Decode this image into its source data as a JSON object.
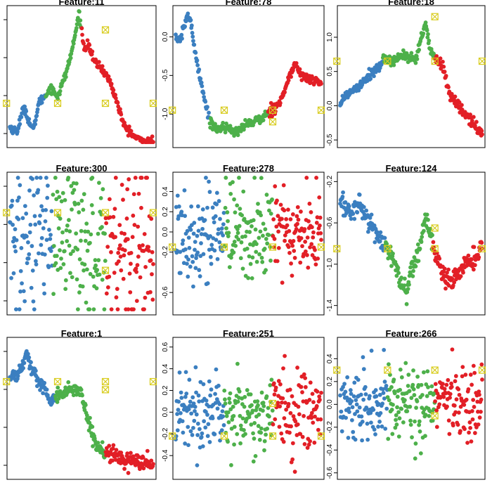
{
  "colors": {
    "blue": "#3b7fc0",
    "green": "#4db04a",
    "red": "#e21f26",
    "yellow": "#d8cc1e"
  },
  "chart_data": [
    {
      "type": "scatter",
      "title": "Feature:11",
      "show_ticks": false,
      "yticks": [],
      "ylim": [
        0,
        1
      ],
      "xlim": [
        0,
        300
      ],
      "noise": 0.015,
      "knots": [
        [
          0,
          0.12
        ],
        [
          15,
          0.09
        ],
        [
          30,
          0.28
        ],
        [
          40,
          0.16
        ],
        [
          50,
          0.1
        ],
        [
          60,
          0.3
        ],
        [
          75,
          0.36
        ],
        [
          85,
          0.42
        ],
        [
          100,
          0.35
        ],
        [
          115,
          0.5
        ],
        [
          125,
          0.62
        ],
        [
          135,
          0.78
        ],
        [
          145,
          0.98
        ],
        [
          155,
          0.72
        ],
        [
          165,
          0.74
        ],
        [
          175,
          0.62
        ],
        [
          195,
          0.55
        ],
        [
          210,
          0.46
        ],
        [
          225,
          0.3
        ],
        [
          240,
          0.12
        ],
        [
          250,
          0.1
        ],
        [
          260,
          0.05
        ],
        [
          270,
          0.03
        ],
        [
          280,
          0.02
        ],
        [
          290,
          0.01
        ],
        [
          300,
          0.02
        ]
      ],
      "segments": [
        [
          0,
          75
        ],
        [
          75,
          150
        ],
        [
          150,
          300
        ]
      ],
      "markers": [
        [
          -7,
          0.3
        ],
        [
          100,
          0.3
        ],
        [
          200,
          0.3
        ],
        [
          200,
          0.85
        ],
        [
          300,
          0.3
        ]
      ]
    },
    {
      "type": "scatter",
      "title": "Feature:78",
      "show_ticks": true,
      "yticks": [
        "0.0",
        "-0.5",
        "-1.0"
      ],
      "ytick_values": [
        0.0,
        -0.5,
        -1.0
      ],
      "ylim": [
        -1.38,
        0.35
      ],
      "xlim": [
        0,
        300
      ],
      "noise": 0.03,
      "knots": [
        [
          0,
          0.0
        ],
        [
          10,
          -0.05
        ],
        [
          18,
          0.15
        ],
        [
          25,
          0.3
        ],
        [
          32,
          0.15
        ],
        [
          40,
          -0.2
        ],
        [
          48,
          -0.45
        ],
        [
          56,
          -0.7
        ],
        [
          64,
          -0.95
        ],
        [
          72,
          -1.1
        ],
        [
          85,
          -1.2
        ],
        [
          100,
          -1.15
        ],
        [
          120,
          -1.25
        ],
        [
          140,
          -1.15
        ],
        [
          160,
          -1.1
        ],
        [
          180,
          -1.05
        ],
        [
          195,
          -0.95
        ],
        [
          215,
          -0.85
        ],
        [
          230,
          -0.6
        ],
        [
          245,
          -0.35
        ],
        [
          260,
          -0.5
        ],
        [
          275,
          -0.55
        ],
        [
          300,
          -0.6
        ]
      ],
      "segments": [
        [
          0,
          70
        ],
        [
          70,
          190
        ],
        [
          190,
          300
        ]
      ],
      "markers": [
        [
          -7,
          -0.95
        ],
        [
          100,
          -0.95
        ],
        [
          200,
          -0.95
        ],
        [
          300,
          -0.95
        ],
        [
          200,
          -1.1
        ]
      ]
    },
    {
      "type": "scatter",
      "title": "Feature:18",
      "show_ticks": true,
      "yticks": [
        "1.0",
        "0.5",
        "0.0",
        "-0.5"
      ],
      "ytick_values": [
        1.0,
        0.5,
        0.0,
        -0.5
      ],
      "ylim": [
        -0.55,
        1.4
      ],
      "xlim": [
        0,
        300
      ],
      "noise": 0.04,
      "knots": [
        [
          0,
          0.05
        ],
        [
          20,
          0.2
        ],
        [
          40,
          0.3
        ],
        [
          60,
          0.45
        ],
        [
          80,
          0.55
        ],
        [
          100,
          0.7
        ],
        [
          115,
          0.65
        ],
        [
          130,
          0.75
        ],
        [
          145,
          0.7
        ],
        [
          160,
          0.65
        ],
        [
          170,
          0.95
        ],
        [
          180,
          1.2
        ],
        [
          190,
          0.8
        ],
        [
          200,
          0.7
        ],
        [
          215,
          0.6
        ],
        [
          230,
          0.2
        ],
        [
          245,
          0.05
        ],
        [
          260,
          -0.1
        ],
        [
          275,
          -0.2
        ],
        [
          290,
          -0.35
        ],
        [
          300,
          -0.4
        ]
      ],
      "segments": [
        [
          0,
          90
        ],
        [
          90,
          200
        ],
        [
          200,
          300
        ]
      ],
      "markers": [
        [
          -7,
          0.65
        ],
        [
          100,
          0.65
        ],
        [
          200,
          0.65
        ],
        [
          200,
          1.3
        ],
        [
          300,
          0.65
        ]
      ]
    },
    {
      "type": "scatter",
      "title": "Feature:300",
      "show_ticks": false,
      "yticks": [],
      "ylim": [
        0,
        1
      ],
      "xlim": [
        0,
        300
      ],
      "noise": 0.3,
      "knots": [
        [
          0,
          0.5
        ],
        [
          300,
          0.5
        ]
      ],
      "segments": [
        [
          0,
          90
        ],
        [
          90,
          200
        ],
        [
          200,
          300
        ]
      ],
      "markers": [
        [
          -7,
          0.73
        ],
        [
          100,
          0.73
        ],
        [
          200,
          0.73
        ],
        [
          300,
          0.73
        ],
        [
          200,
          0.3
        ]
      ]
    },
    {
      "type": "scatter",
      "title": "Feature:278",
      "show_ticks": true,
      "yticks": [
        "0.4",
        "0.2",
        "0.0",
        "-0.2",
        "-0.6"
      ],
      "ytick_values": [
        0.4,
        0.2,
        0.0,
        -0.2,
        -0.6
      ],
      "ylim": [
        -0.78,
        0.55
      ],
      "xlim": [
        0,
        300
      ],
      "noise": 0.24,
      "knots": [
        [
          0,
          0.0
        ],
        [
          300,
          0.0
        ]
      ],
      "segments": [
        [
          0,
          100
        ],
        [
          100,
          200
        ],
        [
          200,
          300
        ]
      ],
      "markers": [
        [
          -7,
          -0.15
        ],
        [
          100,
          -0.15
        ],
        [
          200,
          -0.15
        ],
        [
          300,
          -0.15
        ]
      ]
    },
    {
      "type": "scatter",
      "title": "Feature:124",
      "show_ticks": true,
      "yticks": [
        "-0.2",
        "-0.6",
        "-1.0",
        "-1.4"
      ],
      "ytick_values": [
        -0.2,
        -0.6,
        -1.0,
        -1.4
      ],
      "ylim": [
        -1.45,
        -0.15
      ],
      "xlim": [
        0,
        300
      ],
      "noise": 0.05,
      "knots": [
        [
          0,
          -0.4
        ],
        [
          10,
          -0.45
        ],
        [
          25,
          -0.5
        ],
        [
          40,
          -0.4
        ],
        [
          55,
          -0.55
        ],
        [
          70,
          -0.65
        ],
        [
          85,
          -0.75
        ],
        [
          100,
          -0.85
        ],
        [
          115,
          -1.0
        ],
        [
          130,
          -1.2
        ],
        [
          140,
          -1.3
        ],
        [
          150,
          -1.05
        ],
        [
          165,
          -0.9
        ],
        [
          180,
          -0.55
        ],
        [
          190,
          -0.7
        ],
        [
          200,
          -0.9
        ],
        [
          215,
          -1.1
        ],
        [
          230,
          -1.15
        ],
        [
          250,
          -1.1
        ],
        [
          270,
          -1.0
        ],
        [
          290,
          -0.9
        ],
        [
          300,
          -0.85
        ]
      ],
      "segments": [
        [
          0,
          95
        ],
        [
          95,
          195
        ],
        [
          195,
          300
        ]
      ],
      "markers": [
        [
          -7,
          -0.85
        ],
        [
          100,
          -0.85
        ],
        [
          200,
          -0.85
        ],
        [
          200,
          -0.65
        ],
        [
          300,
          -0.85
        ]
      ]
    },
    {
      "type": "scatter",
      "title": "Feature:1",
      "show_ticks": false,
      "yticks": [],
      "ylim": [
        0,
        1
      ],
      "xlim": [
        0,
        300
      ],
      "noise": 0.025,
      "knots": [
        [
          0,
          0.73
        ],
        [
          15,
          0.75
        ],
        [
          25,
          0.8
        ],
        [
          35,
          0.92
        ],
        [
          45,
          0.8
        ],
        [
          60,
          0.7
        ],
        [
          75,
          0.65
        ],
        [
          85,
          0.55
        ],
        [
          95,
          0.6
        ],
        [
          110,
          0.62
        ],
        [
          130,
          0.65
        ],
        [
          150,
          0.6
        ],
        [
          165,
          0.4
        ],
        [
          180,
          0.2
        ],
        [
          195,
          0.18
        ],
        [
          210,
          0.15
        ],
        [
          230,
          0.13
        ],
        [
          250,
          0.12
        ],
        [
          270,
          0.1
        ],
        [
          290,
          0.08
        ],
        [
          300,
          0.07
        ]
      ],
      "segments": [
        [
          0,
          95
        ],
        [
          95,
          200
        ],
        [
          200,
          300
        ]
      ],
      "markers": [
        [
          -7,
          0.7
        ],
        [
          100,
          0.7
        ],
        [
          200,
          0.7
        ],
        [
          300,
          0.7
        ],
        [
          200,
          0.64
        ]
      ]
    },
    {
      "type": "scatter",
      "title": "Feature:251",
      "show_ticks": true,
      "yticks": [
        "0.6",
        "0.4",
        "0.2",
        "0.0",
        "-0.2",
        "-0.4"
      ],
      "ytick_values": [
        0.6,
        0.4,
        0.2,
        0.0,
        -0.2,
        -0.4
      ],
      "ylim": [
        -0.58,
        0.65
      ],
      "xlim": [
        0,
        300
      ],
      "noise": 0.18,
      "knots": [
        [
          0,
          0.0
        ],
        [
          300,
          0.0
        ]
      ],
      "segments": [
        [
          0,
          100
        ],
        [
          100,
          200
        ],
        [
          200,
          300
        ]
      ],
      "markers": [
        [
          -7,
          -0.22
        ],
        [
          100,
          -0.22
        ],
        [
          200,
          -0.22
        ],
        [
          300,
          -0.22
        ],
        [
          200,
          0.08
        ]
      ]
    },
    {
      "type": "scatter",
      "title": "Feature:266",
      "show_ticks": true,
      "yticks": [
        "0.4",
        "0.2",
        "0.0",
        "-0.2",
        "-0.4",
        "-0.6"
      ],
      "ytick_values": [
        0.4,
        0.2,
        0.0,
        -0.2,
        -0.4,
        -0.6
      ],
      "ylim": [
        -0.62,
        0.55
      ],
      "xlim": [
        0,
        300
      ],
      "noise": 0.17,
      "knots": [
        [
          0,
          0.0
        ],
        [
          300,
          0.0
        ]
      ],
      "segments": [
        [
          0,
          100
        ],
        [
          100,
          200
        ],
        [
          200,
          300
        ]
      ],
      "markers": [
        [
          -7,
          0.3
        ],
        [
          100,
          0.3
        ],
        [
          200,
          0.3
        ],
        [
          300,
          0.3
        ],
        [
          200,
          -0.1
        ]
      ]
    }
  ]
}
